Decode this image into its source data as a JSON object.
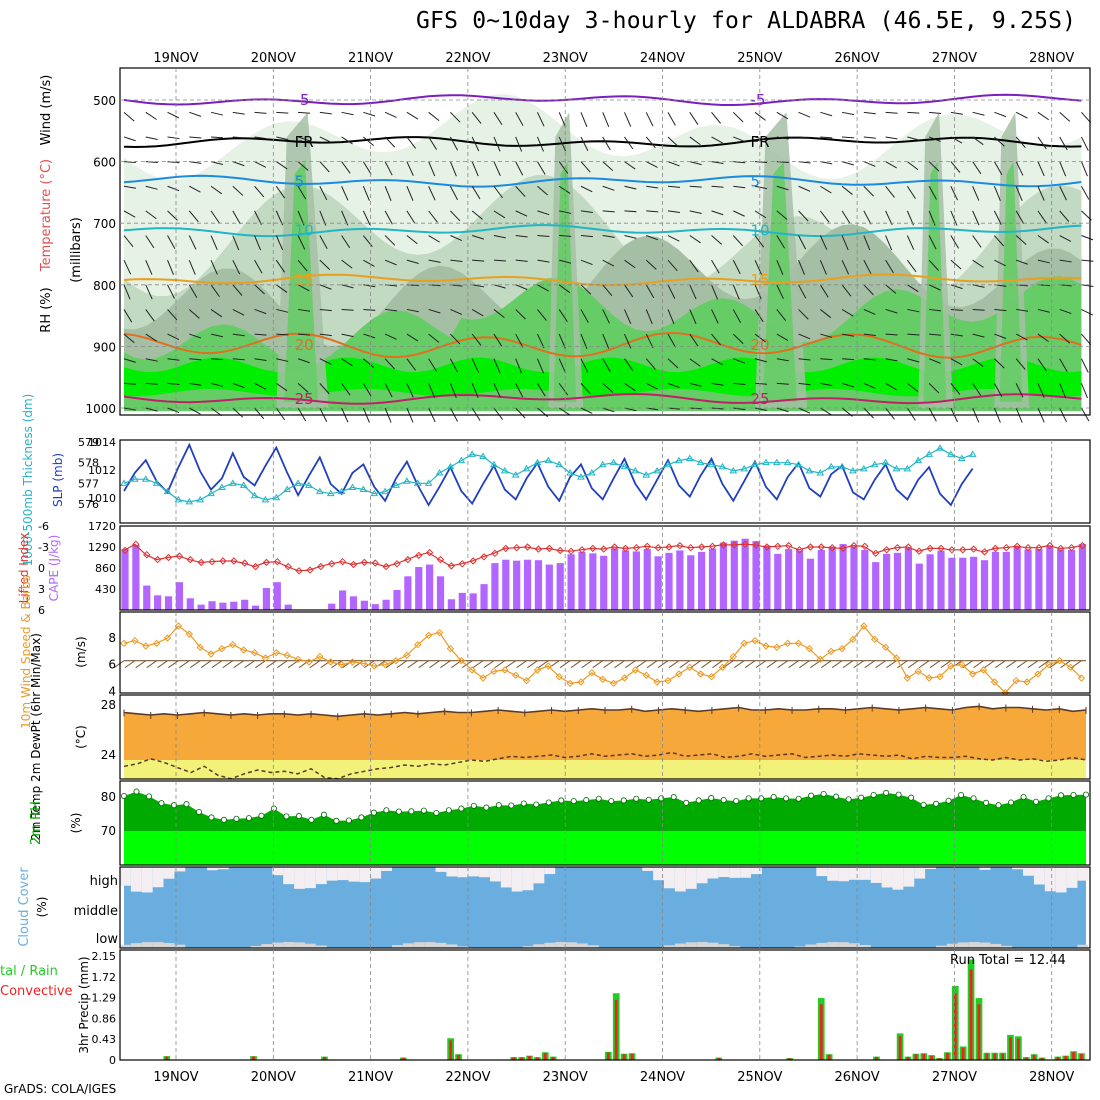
{
  "title": "GFS 0~10day 3-hourly for ALDABRA (46.5E, 9.25S)",
  "credit": "GrADS: COLA/IGES",
  "dates": [
    "19NOV",
    "20NOV",
    "21NOV",
    "22NOV",
    "23NOV",
    "24NOV",
    "25NOV",
    "26NOV",
    "27NOV",
    "28NOV"
  ],
  "colors": {
    "rh_light": "#e6f2e6",
    "rh_mid": "#c2d9c2",
    "rh_gray": "#a5bfa5",
    "rh_green": "#66cc66",
    "rh_bright": "#00ee00",
    "slp": "#1f3fbf",
    "thickness": "#22b5c5",
    "cape": "#b266ff",
    "lifted": "#dd3333",
    "wind10": "#ee9922",
    "temp_fill": "#f6a93a",
    "dew_fill": "#f2f27a",
    "rh2m": "#00aa00",
    "rh2m_low": "#00ff00",
    "cloud": "#6aaee0",
    "cloud_clear": "#f2eef2",
    "precip_total": "#22cc22",
    "precip_conv": "#ee2222"
  },
  "panels": {
    "upper": {
      "ylabels": [
        "RH (%)",
        "Temperature (°C)",
        "Wind (m/s)"
      ],
      "units": "(millibars)",
      "ticks": [
        "500",
        "600",
        "700",
        "800",
        "900",
        "1000"
      ],
      "isotherms": [
        {
          "label": "-5",
          "p": 500,
          "color": "#7a1fbf"
        },
        {
          "label": "FR",
          "p": 568,
          "color": "#000000"
        },
        {
          "label": "5",
          "p": 632,
          "color": "#1b8be0"
        },
        {
          "label": "10",
          "p": 712,
          "color": "#22b5c5"
        },
        {
          "label": "15",
          "p": 792,
          "color": "#e8a020"
        },
        {
          "label": "20",
          "p": 898,
          "color": "#e07020"
        },
        {
          "label": "25",
          "p": 985,
          "color": "#c0206a"
        }
      ]
    },
    "slp": {
      "ylabel_left": "1000-500mb Thickness (dm)",
      "ylabel_right": "SLP (mb)",
      "ticks_left": [
        "579",
        "578",
        "577",
        "576"
      ],
      "ticks_right": [
        "1014",
        "1012",
        "1010"
      ]
    },
    "cape": {
      "ylabel_left": "Lifted Index",
      "ylabel_right": "CAPE (J/kg)",
      "ticks_left": [
        "-6",
        "-3",
        "0",
        "3",
        "6"
      ],
      "ticks_right": [
        "1720",
        "1290",
        "860",
        "430"
      ]
    },
    "wind": {
      "ylabel": "10m Wind Speed & Barbs",
      "units": "(m/s)",
      "ticks": [
        "8",
        "6",
        "4"
      ]
    },
    "temp": {
      "ylabel": "2m Temp 2m DewPt (6hr Min/Max)",
      "units": "(°C)",
      "ticks": [
        "28",
        "24"
      ]
    },
    "rh": {
      "ylabel": "2m RH",
      "units": "(%)",
      "ticks": [
        "80",
        "70"
      ]
    },
    "cloud": {
      "ylabel": "Cloud Cover",
      "units": "(%)",
      "levels": [
        "high",
        "middle",
        "low"
      ]
    },
    "precip": {
      "ylabel_left": "Total / Rain Convective",
      "ylabel_right": "3hr Precip (mm)",
      "ticks": [
        "2.15",
        "1.72",
        "1.29",
        "0.86",
        "0.43",
        "0"
      ],
      "run_total_label": "Run Total = 12.44"
    }
  },
  "chart_data": [
    {
      "type": "line",
      "title": "1000-500mb Thickness (dm) / SLP (mb)",
      "x_unit": "3-hourly steps (0 = 18NOV12Z)",
      "series": [
        {
          "name": "SLP (mb)",
          "values": [
            1010.5,
            1011.8,
            1012.7,
            1011.2,
            1010.4,
            1012.2,
            1013.8,
            1011.9,
            1010.6,
            1011.4,
            1013.2,
            1011.5,
            1010.9,
            1012.3,
            1013.6,
            1011.8,
            1010.2,
            1011.6,
            1012.9,
            1011.0,
            1010.3,
            1011.8,
            1012.4,
            1010.8,
            1009.8,
            1011.4,
            1012.6,
            1010.9,
            1009.5,
            1010.8,
            1012.2,
            1010.5,
            1009.6,
            1011.0,
            1012.3,
            1010.6,
            1009.9,
            1011.4,
            1012.5,
            1010.8,
            1009.8,
            1011.5,
            1012.4,
            1010.7,
            1009.9,
            1011.4,
            1012.8,
            1011.0,
            1009.9,
            1011.3,
            1012.7,
            1010.9,
            1010.1,
            1011.6,
            1012.8,
            1011.0,
            1009.8,
            1011.2,
            1012.6,
            1010.8,
            1009.9,
            1011.5,
            1012.5,
            1010.7,
            1010.1,
            1011.7,
            1012.3,
            1010.4,
            1009.9,
            1011.3,
            1012.4,
            1010.6,
            1009.9,
            1011.3,
            1012.2,
            1010.3,
            1009.5,
            1011.0,
            1012.1
          ]
        },
        {
          "name": "1000-500mb Thickness (dm)",
          "values": [
            577.0,
            577.2,
            577.2,
            577.0,
            576.6,
            576.2,
            576.1,
            576.2,
            576.5,
            576.8,
            577.0,
            576.9,
            576.4,
            576.2,
            576.3,
            576.7,
            577.0,
            576.9,
            576.6,
            576.5,
            576.6,
            576.8,
            576.7,
            576.5,
            576.6,
            576.9,
            577.1,
            577.0,
            577.0,
            577.5,
            577.8,
            578.1,
            578.4,
            578.3,
            577.9,
            577.6,
            577.4,
            577.7,
            578.0,
            578.1,
            577.9,
            577.5,
            577.3,
            577.5,
            577.9,
            578.0,
            577.8,
            577.6,
            577.4,
            577.6,
            577.9,
            578.1,
            578.2,
            578.0,
            577.9,
            577.8,
            577.6,
            577.7,
            577.9,
            578.0,
            578.0,
            578.0,
            577.9,
            577.6,
            577.5,
            577.8,
            577.8,
            577.6,
            577.7,
            577.9,
            578.0,
            577.7,
            577.7,
            578.1,
            578.4,
            578.7,
            578.4,
            578.2,
            578.4
          ]
        }
      ]
    },
    {
      "type": "bar",
      "title": "CAPE (J/kg) / Lifted Index",
      "series": [
        {
          "name": "CAPE (J/kg)",
          "values": [
            1250,
            1330,
            500,
            300,
            280,
            570,
            240,
            110,
            180,
            150,
            170,
            210,
            90,
            450,
            570,
            110,
            0,
            0,
            10,
            130,
            400,
            280,
            190,
            120,
            210,
            410,
            690,
            880,
            930,
            690,
            220,
            350,
            340,
            530,
            960,
            1030,
            1010,
            1030,
            1020,
            930,
            960,
            1140,
            1190,
            1160,
            1110,
            1260,
            1220,
            1200,
            1250,
            1100,
            1170,
            1220,
            1120,
            1190,
            1260,
            1380,
            1420,
            1460,
            1410,
            1320,
            1150,
            1250,
            1220,
            1050,
            1230,
            1300,
            1350,
            1300,
            1230,
            980,
            1150,
            1170,
            1270,
            950,
            1140,
            1210,
            1070,
            1070,
            1090,
            1020,
            1190,
            1190,
            1310,
            1240,
            1250,
            1300,
            1240,
            1230,
            1350
          ]
        },
        {
          "name": "Lifted Index",
          "values": [
            -2.5,
            -3.4,
            -1.9,
            -1.2,
            -1.5,
            -1.7,
            -1.2,
            -0.8,
            -0.9,
            -1.0,
            -1.0,
            -0.7,
            -0.2,
            -0.8,
            -0.9,
            -0.2,
            0.4,
            0.3,
            -0.2,
            -0.6,
            -0.9,
            -0.5,
            -0.8,
            -0.7,
            -0.2,
            -0.6,
            -1.2,
            -1.8,
            -2.2,
            -1.2,
            -0.3,
            -0.6,
            -1.0,
            -1.6,
            -2.1,
            -2.8,
            -2.9,
            -3.0,
            -2.7,
            -2.8,
            -2.5,
            -2.4,
            -2.6,
            -2.8,
            -2.7,
            -3.0,
            -2.8,
            -2.9,
            -3.1,
            -2.9,
            -3.0,
            -3.2,
            -2.9,
            -3.0,
            -3.1,
            -3.3,
            -3.3,
            -3.4,
            -3.3,
            -3.0,
            -3.1,
            -3.2,
            -2.6,
            -3.0,
            -3.0,
            -2.9,
            -2.8,
            -3.2,
            -3.1,
            -2.1,
            -2.6,
            -2.9,
            -3.0,
            -2.4,
            -2.8,
            -2.8,
            -2.6,
            -2.6,
            -2.7,
            -2.3,
            -2.8,
            -2.9,
            -3.1,
            -2.9,
            -2.9,
            -3.2,
            -2.8,
            -2.9,
            -3.2
          ]
        }
      ]
    },
    {
      "type": "line",
      "title": "10m Wind Speed (m/s)",
      "series": [
        {
          "name": "10m Wind Speed",
          "values": [
            7.6,
            7.8,
            7.4,
            7.6,
            8.0,
            8.9,
            8.3,
            7.3,
            6.8,
            7.2,
            7.5,
            7.1,
            6.9,
            6.5,
            6.9,
            6.7,
            6.4,
            6.2,
            6.6,
            6.2,
            6.0,
            6.2,
            6.1,
            5.9,
            6.0,
            6.3,
            6.7,
            7.5,
            8.2,
            8.4,
            7.2,
            6.3,
            5.6,
            5.0,
            5.5,
            5.6,
            5.2,
            4.8,
            5.6,
            5.9,
            5.1,
            4.6,
            4.7,
            5.4,
            4.9,
            4.6,
            5.0,
            5.6,
            5.2,
            4.7,
            4.8,
            5.3,
            5.8,
            5.3,
            5.1,
            5.8,
            6.6,
            7.6,
            7.8,
            7.4,
            7.3,
            7.6,
            7.6,
            7.2,
            6.4,
            7.0,
            7.2,
            7.9,
            8.9,
            7.9,
            7.3,
            6.5,
            5.0,
            5.5,
            5.0,
            5.1,
            5.9,
            6.0,
            5.3,
            5.6,
            4.7,
            3.9,
            4.8,
            4.7,
            5.3,
            6.0,
            6.3,
            5.8,
            5.0
          ]
        }
      ]
    },
    {
      "type": "area",
      "title": "2m Temp / 2m DewPt (°C)",
      "series": [
        {
          "name": "2m Temp",
          "values": [
            27.4,
            27.3,
            27.2,
            27.3,
            27.2,
            27.3,
            27.4,
            27.3,
            27.2,
            27.3,
            27.2,
            27.3,
            27.3,
            27.2,
            27.3,
            27.2,
            27.1,
            27.2,
            27.3,
            27.2,
            27.3,
            27.4,
            27.3,
            27.4,
            27.5,
            27.4,
            27.4,
            27.5,
            27.6,
            27.5,
            27.4,
            27.5,
            27.6,
            27.5,
            27.6,
            27.7,
            27.6,
            27.6,
            27.7,
            27.5,
            27.6,
            27.7,
            27.6,
            27.5,
            27.6,
            27.7,
            27.8,
            27.6,
            27.6,
            27.7,
            27.6,
            27.6,
            27.7,
            27.7,
            27.6,
            27.7,
            27.8,
            27.7,
            27.6,
            27.7,
            27.8,
            27.7,
            27.6,
            27.8,
            27.9,
            27.7,
            27.8,
            27.8,
            27.7,
            27.6,
            27.7,
            27.5,
            27.6
          ]
        },
        {
          "name": "2m DewPt",
          "values": [
            23.1,
            23.3,
            23.7,
            23.4,
            23.0,
            22.6,
            23.1,
            22.4,
            22.1,
            22.5,
            22.8,
            22.6,
            22.7,
            22.5,
            22.9,
            22.2,
            22.1,
            22.5,
            22.7,
            22.9,
            23.0,
            23.2,
            23.1,
            23.3,
            23.2,
            23.4,
            23.6,
            23.5,
            23.7,
            23.9,
            23.8,
            23.9,
            24.0,
            23.8,
            23.9,
            24.1,
            23.9,
            24.0,
            24.1,
            23.9,
            24.0,
            24.2,
            23.9,
            24.0,
            24.1,
            23.8,
            23.9,
            24.1,
            23.9,
            24.0,
            24.1,
            23.8,
            23.9,
            24.0,
            23.9,
            24.1,
            24.0,
            23.9,
            24.0,
            23.7,
            23.9,
            23.8,
            23.8,
            23.9,
            23.7,
            23.6,
            23.8,
            23.6,
            23.7,
            23.5,
            23.6,
            23.8,
            23.6
          ]
        }
      ]
    },
    {
      "type": "area",
      "title": "2m RH (%)",
      "series": [
        {
          "name": "2m RH",
          "values": [
            80.3,
            81.6,
            80.2,
            78.2,
            77.6,
            77.9,
            75.6,
            74.0,
            73.3,
            73.6,
            73.8,
            74.5,
            76.6,
            74.3,
            74.4,
            73.3,
            74.8,
            73.0,
            73.1,
            74.0,
            75.4,
            76.1,
            75.7,
            75.8,
            76.0,
            75.3,
            76.1,
            76.6,
            77.4,
            76.9,
            77.6,
            77.5,
            78.1,
            77.8,
            78.4,
            79.0,
            78.8,
            79.1,
            79.5,
            78.8,
            79.0,
            79.5,
            79.2,
            79.6,
            80.0,
            78.3,
            79.0,
            79.7,
            79.1,
            78.8,
            79.6,
            79.6,
            80.0,
            79.6,
            79.5,
            80.4,
            80.9,
            80.1,
            79.3,
            79.8,
            80.6,
            81.2,
            80.7,
            79.8,
            77.7,
            78.0,
            78.9,
            80.6,
            79.6,
            78.3,
            77.6,
            78.4,
            80.0,
            78.6,
            79.6,
            80.5,
            80.6,
            80.7
          ]
        }
      ]
    },
    {
      "type": "bar",
      "title": "3hr Precip (mm)",
      "ylim": [
        0,
        2.15
      ],
      "series": [
        {
          "name": "Total",
          "values": [
            0,
            0,
            0,
            0,
            0,
            0.08,
            0,
            0,
            0,
            0,
            0,
            0,
            0,
            0,
            0,
            0,
            0.08,
            0,
            0,
            0,
            0,
            0,
            0,
            0,
            0,
            0.07,
            0,
            0,
            0,
            0,
            0,
            0,
            0,
            0,
            0,
            0.05,
            0,
            0,
            0,
            0,
            0,
            0.45,
            0.12,
            0,
            0,
            0,
            0,
            0,
            0,
            0.06,
            0.06,
            0.09,
            0.06,
            0.16,
            0.07,
            0,
            0,
            0,
            0,
            0,
            0,
            0.17,
            1.38,
            0.13,
            0.14,
            0,
            0,
            0,
            0,
            0,
            0,
            0,
            0,
            0,
            0,
            0.05,
            0,
            0,
            0,
            0,
            0,
            0,
            0,
            0,
            0.04,
            0,
            0,
            0,
            1.28,
            0.12,
            0,
            0,
            0,
            0,
            0,
            0.07,
            0,
            0,
            0.55,
            0.07,
            0.13,
            0.14,
            0.1,
            0.04,
            0.16,
            1.53,
            0.28,
            2.08,
            1.28,
            0.15,
            0.15,
            0.15,
            0.52,
            0.49,
            0.06,
            0.12,
            0.05,
            0,
            0.07,
            0.09,
            0.18,
            0.14
          ]
        }
      ]
    }
  ]
}
